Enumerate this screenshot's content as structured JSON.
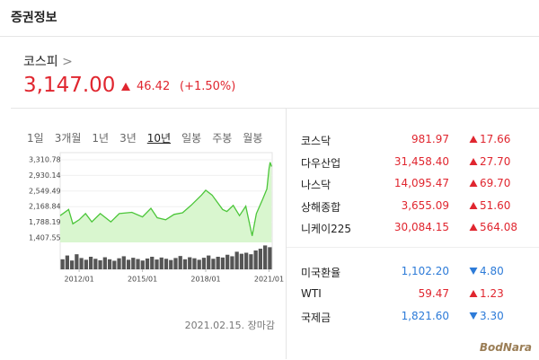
{
  "header": {
    "title": "증권정보"
  },
  "index": {
    "name": "코스피",
    "value": "3,147.00",
    "change": "46.42",
    "change_pct": "(+1.50%)",
    "direction": "up"
  },
  "tabs": {
    "items": [
      "1일",
      "3개월",
      "1년",
      "3년",
      "10년",
      "일봉",
      "주봉",
      "월봉"
    ],
    "active": 4
  },
  "chart_note": "2021.02.15. 장마감",
  "markets": [
    [
      {
        "name": "코스닥",
        "value": "981.97",
        "change": "17.66",
        "direction": "up"
      },
      {
        "name": "다우산업",
        "value": "31,458.40",
        "change": "27.70",
        "direction": "up"
      },
      {
        "name": "나스닥",
        "value": "14,095.47",
        "change": "69.70",
        "direction": "up"
      },
      {
        "name": "상해종합",
        "value": "3,655.09",
        "change": "51.60",
        "direction": "up"
      },
      {
        "name": "니케이225",
        "value": "30,084.15",
        "change": "564.08",
        "direction": "up"
      }
    ],
    [
      {
        "name": "미국환율",
        "value": "1,102.20",
        "change": "4.80",
        "direction": "down"
      },
      {
        "name": "WTI",
        "value": "59.47",
        "change": "1.23",
        "direction": "up"
      },
      {
        "name": "국제금",
        "value": "1,821.60",
        "change": "3.30",
        "direction": "down"
      }
    ]
  ],
  "watermark": "BodNara",
  "chart_data": [
    {
      "type": "line",
      "color": "#4cc63a",
      "fill": "#d9f6cf",
      "x": [
        2011.1,
        2011.5,
        2011.7,
        2012.0,
        2012.3,
        2012.6,
        2013.0,
        2013.5,
        2013.9,
        2014.5,
        2015.0,
        2015.4,
        2015.7,
        2016.1,
        2016.5,
        2016.9,
        2017.3,
        2017.8,
        2018.0,
        2018.3,
        2018.8,
        2019.0,
        2019.3,
        2019.6,
        2019.9,
        2020.2,
        2020.4,
        2020.7,
        2020.9,
        2021.0,
        2021.05,
        2021.12
      ],
      "values": [
        1950,
        2100,
        1750,
        1850,
        2000,
        1800,
        2000,
        1800,
        2000,
        2030,
        1920,
        2130,
        1900,
        1850,
        1980,
        2020,
        2200,
        2450,
        2570,
        2450,
        2100,
        2050,
        2200,
        1950,
        2180,
        1457,
        2000,
        2350,
        2600,
        3100,
        3250,
        3147
      ],
      "xlim": [
        2011.1,
        2021.15
      ],
      "xticks": [
        {
          "value": 2012.0,
          "label": "2012/01"
        },
        {
          "value": 2015.0,
          "label": "2015/01"
        },
        {
          "value": 2018.0,
          "label": "2018/01"
        },
        {
          "value": 2021.0,
          "label": "2021/01"
        }
      ],
      "ylim": [
        1407.55,
        3310.78
      ],
      "yticks": [
        {
          "value": 3310.78,
          "label": "3,310.78"
        },
        {
          "value": 2930.14,
          "label": "2,930.14"
        },
        {
          "value": 2549.49,
          "label": "2,549.49"
        },
        {
          "value": 2168.84,
          "label": "2,168.84"
        },
        {
          "value": 1788.19,
          "label": "1,788.19"
        },
        {
          "value": 1407.55,
          "label": "1,407.55"
        }
      ],
      "grid": true
    },
    {
      "type": "bar",
      "color": "#555555",
      "ylim": [
        0,
        100
      ],
      "values": [
        40,
        55,
        35,
        60,
        45,
        38,
        50,
        42,
        36,
        48,
        40,
        34,
        44,
        52,
        38,
        46,
        41,
        35,
        43,
        50,
        39,
        47,
        42,
        37,
        45,
        53,
        40,
        48,
        44,
        38,
        46,
        55,
        42,
        50,
        47,
        58,
        52,
        70,
        62,
        66,
        60,
        75,
        82,
        95,
        88
      ]
    }
  ]
}
